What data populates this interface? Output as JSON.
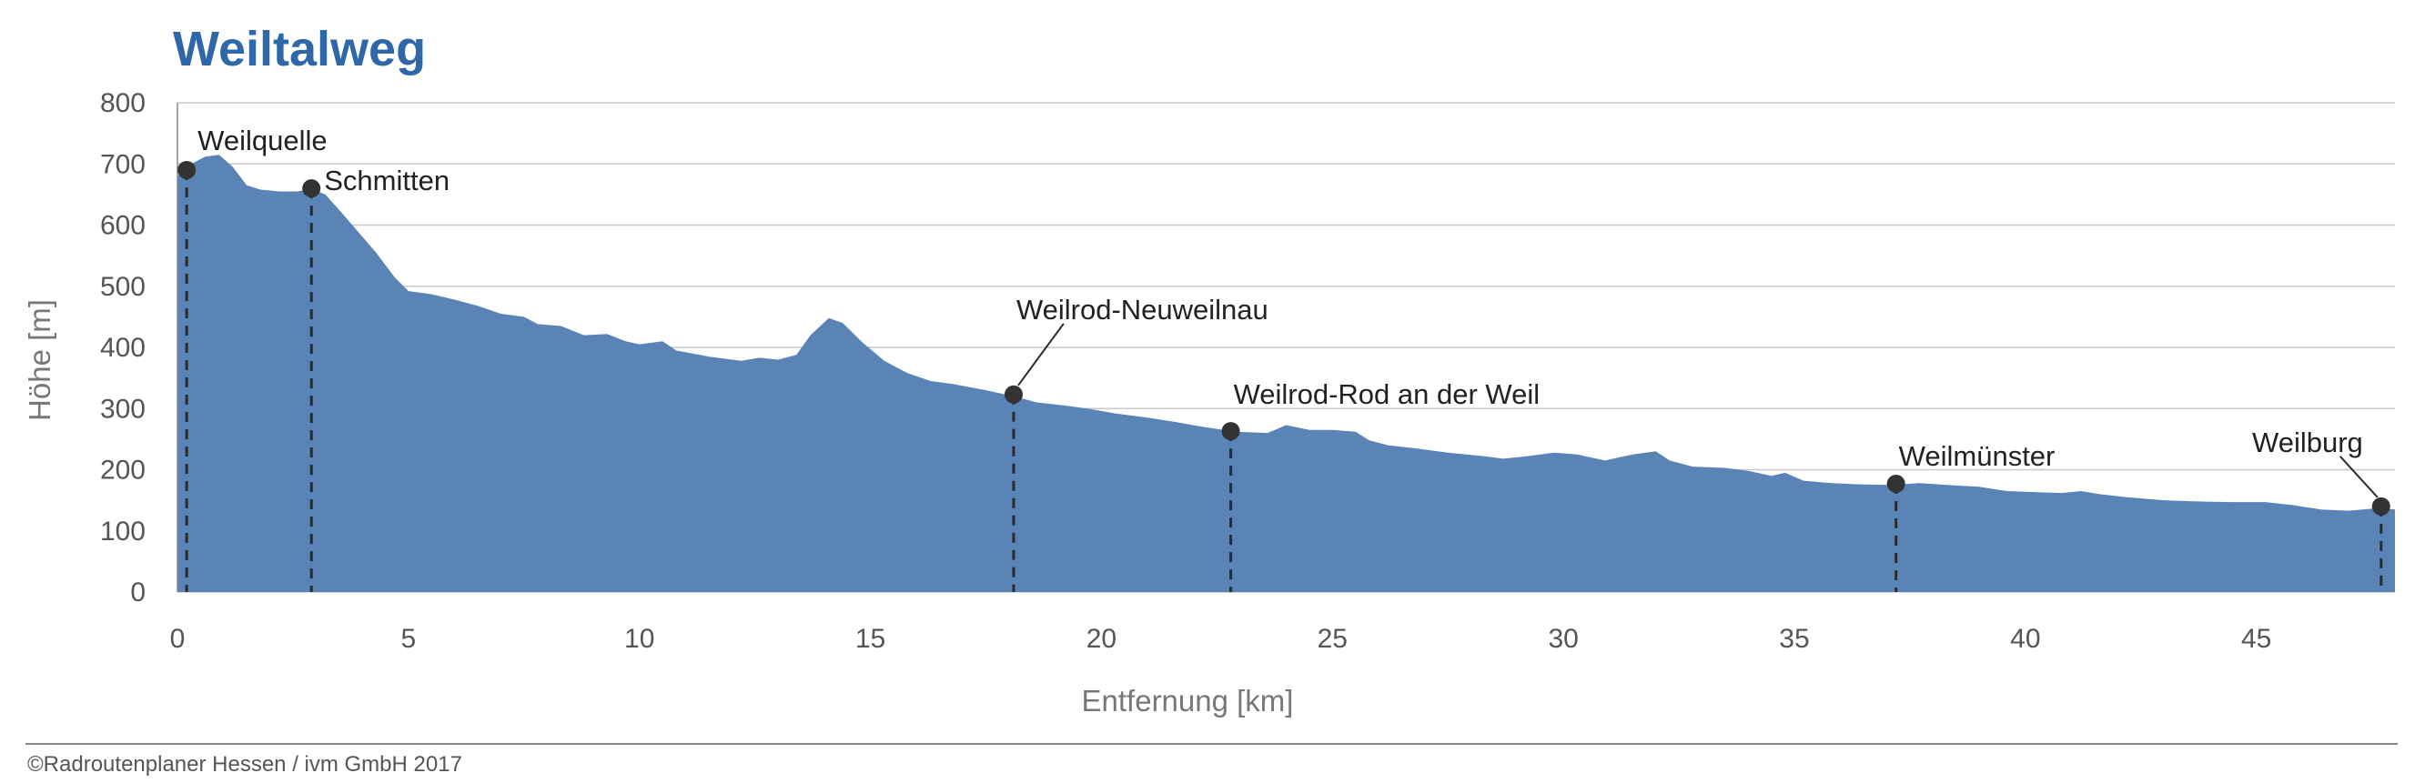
{
  "footer": {
    "credit": "©Radroutenplaner Hessen / ivm GmbH 2017"
  },
  "chart_data": {
    "type": "area",
    "title": "Weiltalweg",
    "xlabel": "Entfernung [km]",
    "ylabel": "Höhe [m]",
    "xlim": [
      0,
      48
    ],
    "ylim": [
      0,
      800
    ],
    "x_ticks": [
      0,
      5,
      10,
      15,
      20,
      25,
      30,
      35,
      40,
      45
    ],
    "y_ticks": [
      0,
      100,
      200,
      300,
      400,
      500,
      600,
      700,
      800
    ],
    "grid": true,
    "fill_color": "#5a83b6",
    "title_color": "#2e68a8",
    "marker_color": "#333333",
    "profile": [
      [
        0,
        680
      ],
      [
        0.3,
        700
      ],
      [
        0.6,
        712
      ],
      [
        0.9,
        715
      ],
      [
        1.2,
        695
      ],
      [
        1.5,
        665
      ],
      [
        1.8,
        658
      ],
      [
        2.2,
        655
      ],
      [
        2.6,
        655
      ],
      [
        2.9,
        660
      ],
      [
        3.2,
        650
      ],
      [
        3.5,
        625
      ],
      [
        3.9,
        590
      ],
      [
        4.3,
        555
      ],
      [
        4.7,
        515
      ],
      [
        5.0,
        492
      ],
      [
        5.5,
        487
      ],
      [
        6.0,
        478
      ],
      [
        6.5,
        468
      ],
      [
        7.0,
        455
      ],
      [
        7.5,
        450
      ],
      [
        7.8,
        438
      ],
      [
        8.3,
        435
      ],
      [
        8.8,
        420
      ],
      [
        9.3,
        422
      ],
      [
        9.7,
        410
      ],
      [
        10.0,
        405
      ],
      [
        10.5,
        410
      ],
      [
        10.8,
        395
      ],
      [
        11.5,
        385
      ],
      [
        12.2,
        378
      ],
      [
        12.6,
        383
      ],
      [
        13.0,
        380
      ],
      [
        13.4,
        388
      ],
      [
        13.7,
        420
      ],
      [
        14.1,
        448
      ],
      [
        14.4,
        440
      ],
      [
        14.8,
        410
      ],
      [
        15.3,
        378
      ],
      [
        15.8,
        358
      ],
      [
        16.3,
        345
      ],
      [
        16.8,
        340
      ],
      [
        17.5,
        330
      ],
      [
        18.1,
        320
      ],
      [
        18.6,
        310
      ],
      [
        19.2,
        305
      ],
      [
        19.7,
        300
      ],
      [
        20.3,
        292
      ],
      [
        21.0,
        285
      ],
      [
        21.6,
        278
      ],
      [
        22.2,
        270
      ],
      [
        22.9,
        262
      ],
      [
        23.6,
        260
      ],
      [
        24.0,
        273
      ],
      [
        24.5,
        265
      ],
      [
        25.0,
        265
      ],
      [
        25.5,
        262
      ],
      [
        25.8,
        248
      ],
      [
        26.2,
        240
      ],
      [
        26.8,
        235
      ],
      [
        27.5,
        228
      ],
      [
        28.3,
        222
      ],
      [
        28.7,
        218
      ],
      [
        29.2,
        222
      ],
      [
        29.8,
        228
      ],
      [
        30.3,
        225
      ],
      [
        30.9,
        215
      ],
      [
        31.5,
        225
      ],
      [
        32.0,
        230
      ],
      [
        32.3,
        215
      ],
      [
        32.8,
        205
      ],
      [
        33.5,
        203
      ],
      [
        34.0,
        198
      ],
      [
        34.5,
        190
      ],
      [
        34.8,
        195
      ],
      [
        35.2,
        182
      ],
      [
        35.8,
        178
      ],
      [
        36.4,
        176
      ],
      [
        37.1,
        175
      ],
      [
        37.7,
        178
      ],
      [
        38.3,
        175
      ],
      [
        39.0,
        172
      ],
      [
        39.6,
        165
      ],
      [
        40.3,
        163
      ],
      [
        40.8,
        162
      ],
      [
        41.2,
        165
      ],
      [
        41.6,
        160
      ],
      [
        42.2,
        155
      ],
      [
        43.0,
        150
      ],
      [
        43.8,
        148
      ],
      [
        44.5,
        147
      ],
      [
        45.2,
        147
      ],
      [
        45.8,
        142
      ],
      [
        46.4,
        135
      ],
      [
        47.0,
        133
      ],
      [
        47.6,
        137
      ],
      [
        48.0,
        135
      ]
    ],
    "waypoints": [
      {
        "name": "Weilquelle",
        "km": 0.2,
        "elevation": 690
      },
      {
        "name": "Schmitten",
        "km": 2.9,
        "elevation": 660
      },
      {
        "name": "Weilrod-Neuweilnau",
        "km": 18.1,
        "elevation": 323
      },
      {
        "name": "Weilrod-Rod an der Weil",
        "km": 22.8,
        "elevation": 263
      },
      {
        "name": "Weilmünster",
        "km": 37.2,
        "elevation": 177
      },
      {
        "name": "Weilburg",
        "km": 47.7,
        "elevation": 140
      }
    ]
  }
}
